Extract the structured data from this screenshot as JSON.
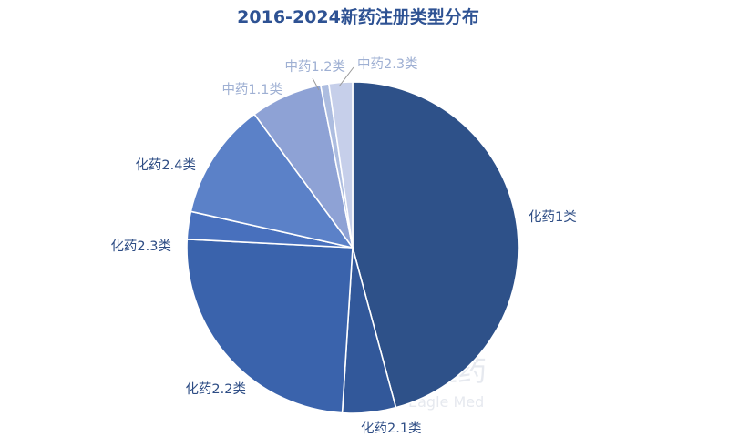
{
  "colors": {
    "title": "#2e5293",
    "label": "#2e4d85",
    "label_light": "#9fb0d3",
    "watermark": "#e8ebf1"
  },
  "watermark": {
    "cn": "医药",
    "en": "Eagle Med"
  },
  "chart_data": {
    "type": "pie",
    "title": "2016-2024新药注册类型分布",
    "slices": [
      {
        "label": "化药1类",
        "value": 45.8,
        "color": "#2e5189"
      },
      {
        "label": "化药2.1类",
        "value": 5.2,
        "color": "#32589a"
      },
      {
        "label": "化药2.2类",
        "value": 24.8,
        "color": "#3a63ac"
      },
      {
        "label": "化药2.3类",
        "value": 2.7,
        "color": "#4870bd"
      },
      {
        "label": "化药2.4类",
        "value": 11.4,
        "color": "#5b81c8"
      },
      {
        "label": "中药1.1类",
        "value": 7.0,
        "color": "#8ea2d5"
      },
      {
        "label": "中药1.2类",
        "value": 0.8,
        "color": "#adbde0"
      },
      {
        "label": "中药2.3类",
        "value": 2.3,
        "color": "#c6cfea"
      }
    ]
  }
}
